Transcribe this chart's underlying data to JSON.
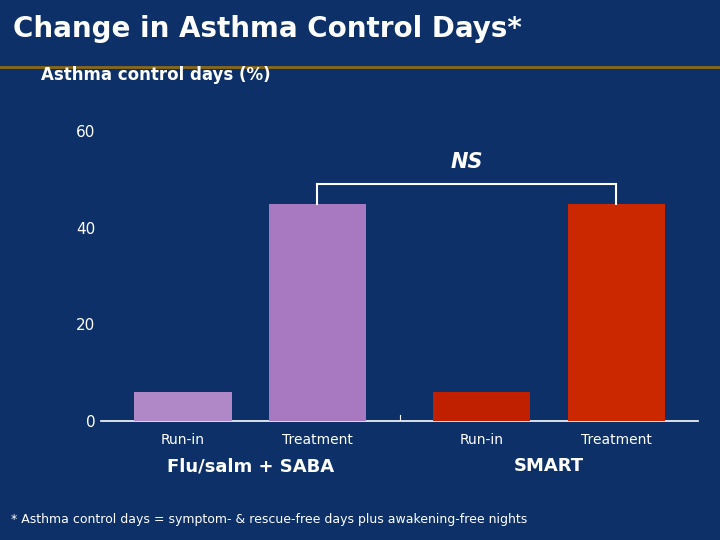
{
  "title": "Change in Asthma Control Days*",
  "ylabel": "Asthma control days (%)",
  "background_color": "#0d3068",
  "title_bg_color": "#1a4080",
  "separator_color": "#8B6914",
  "bar_groups": [
    {
      "label": "Flu/salm + SABA",
      "bars": [
        {
          "x_label": "Run-in",
          "value": 6,
          "color": "#b088c8"
        },
        {
          "x_label": "Treatment",
          "value": 45,
          "color": "#a878c0"
        }
      ]
    },
    {
      "label": "SMART",
      "bars": [
        {
          "x_label": "Run-in",
          "value": 6,
          "color": "#c02000"
        },
        {
          "x_label": "Treatment",
          "value": 45,
          "color": "#cc2800"
        }
      ]
    }
  ],
  "ns_text": "NS",
  "footnote": "* Asthma control days = symptom- & rescue-free days plus awakening-free nights",
  "yticks": [
    0,
    20,
    40,
    60
  ],
  "ylim": [
    0,
    67
  ],
  "title_fontsize": 20,
  "ylabel_fontsize": 12,
  "tick_fontsize": 11,
  "bar_label_fontsize": 10,
  "group_label_fontsize": 13,
  "ns_fontsize": 15,
  "footnote_fontsize": 9
}
